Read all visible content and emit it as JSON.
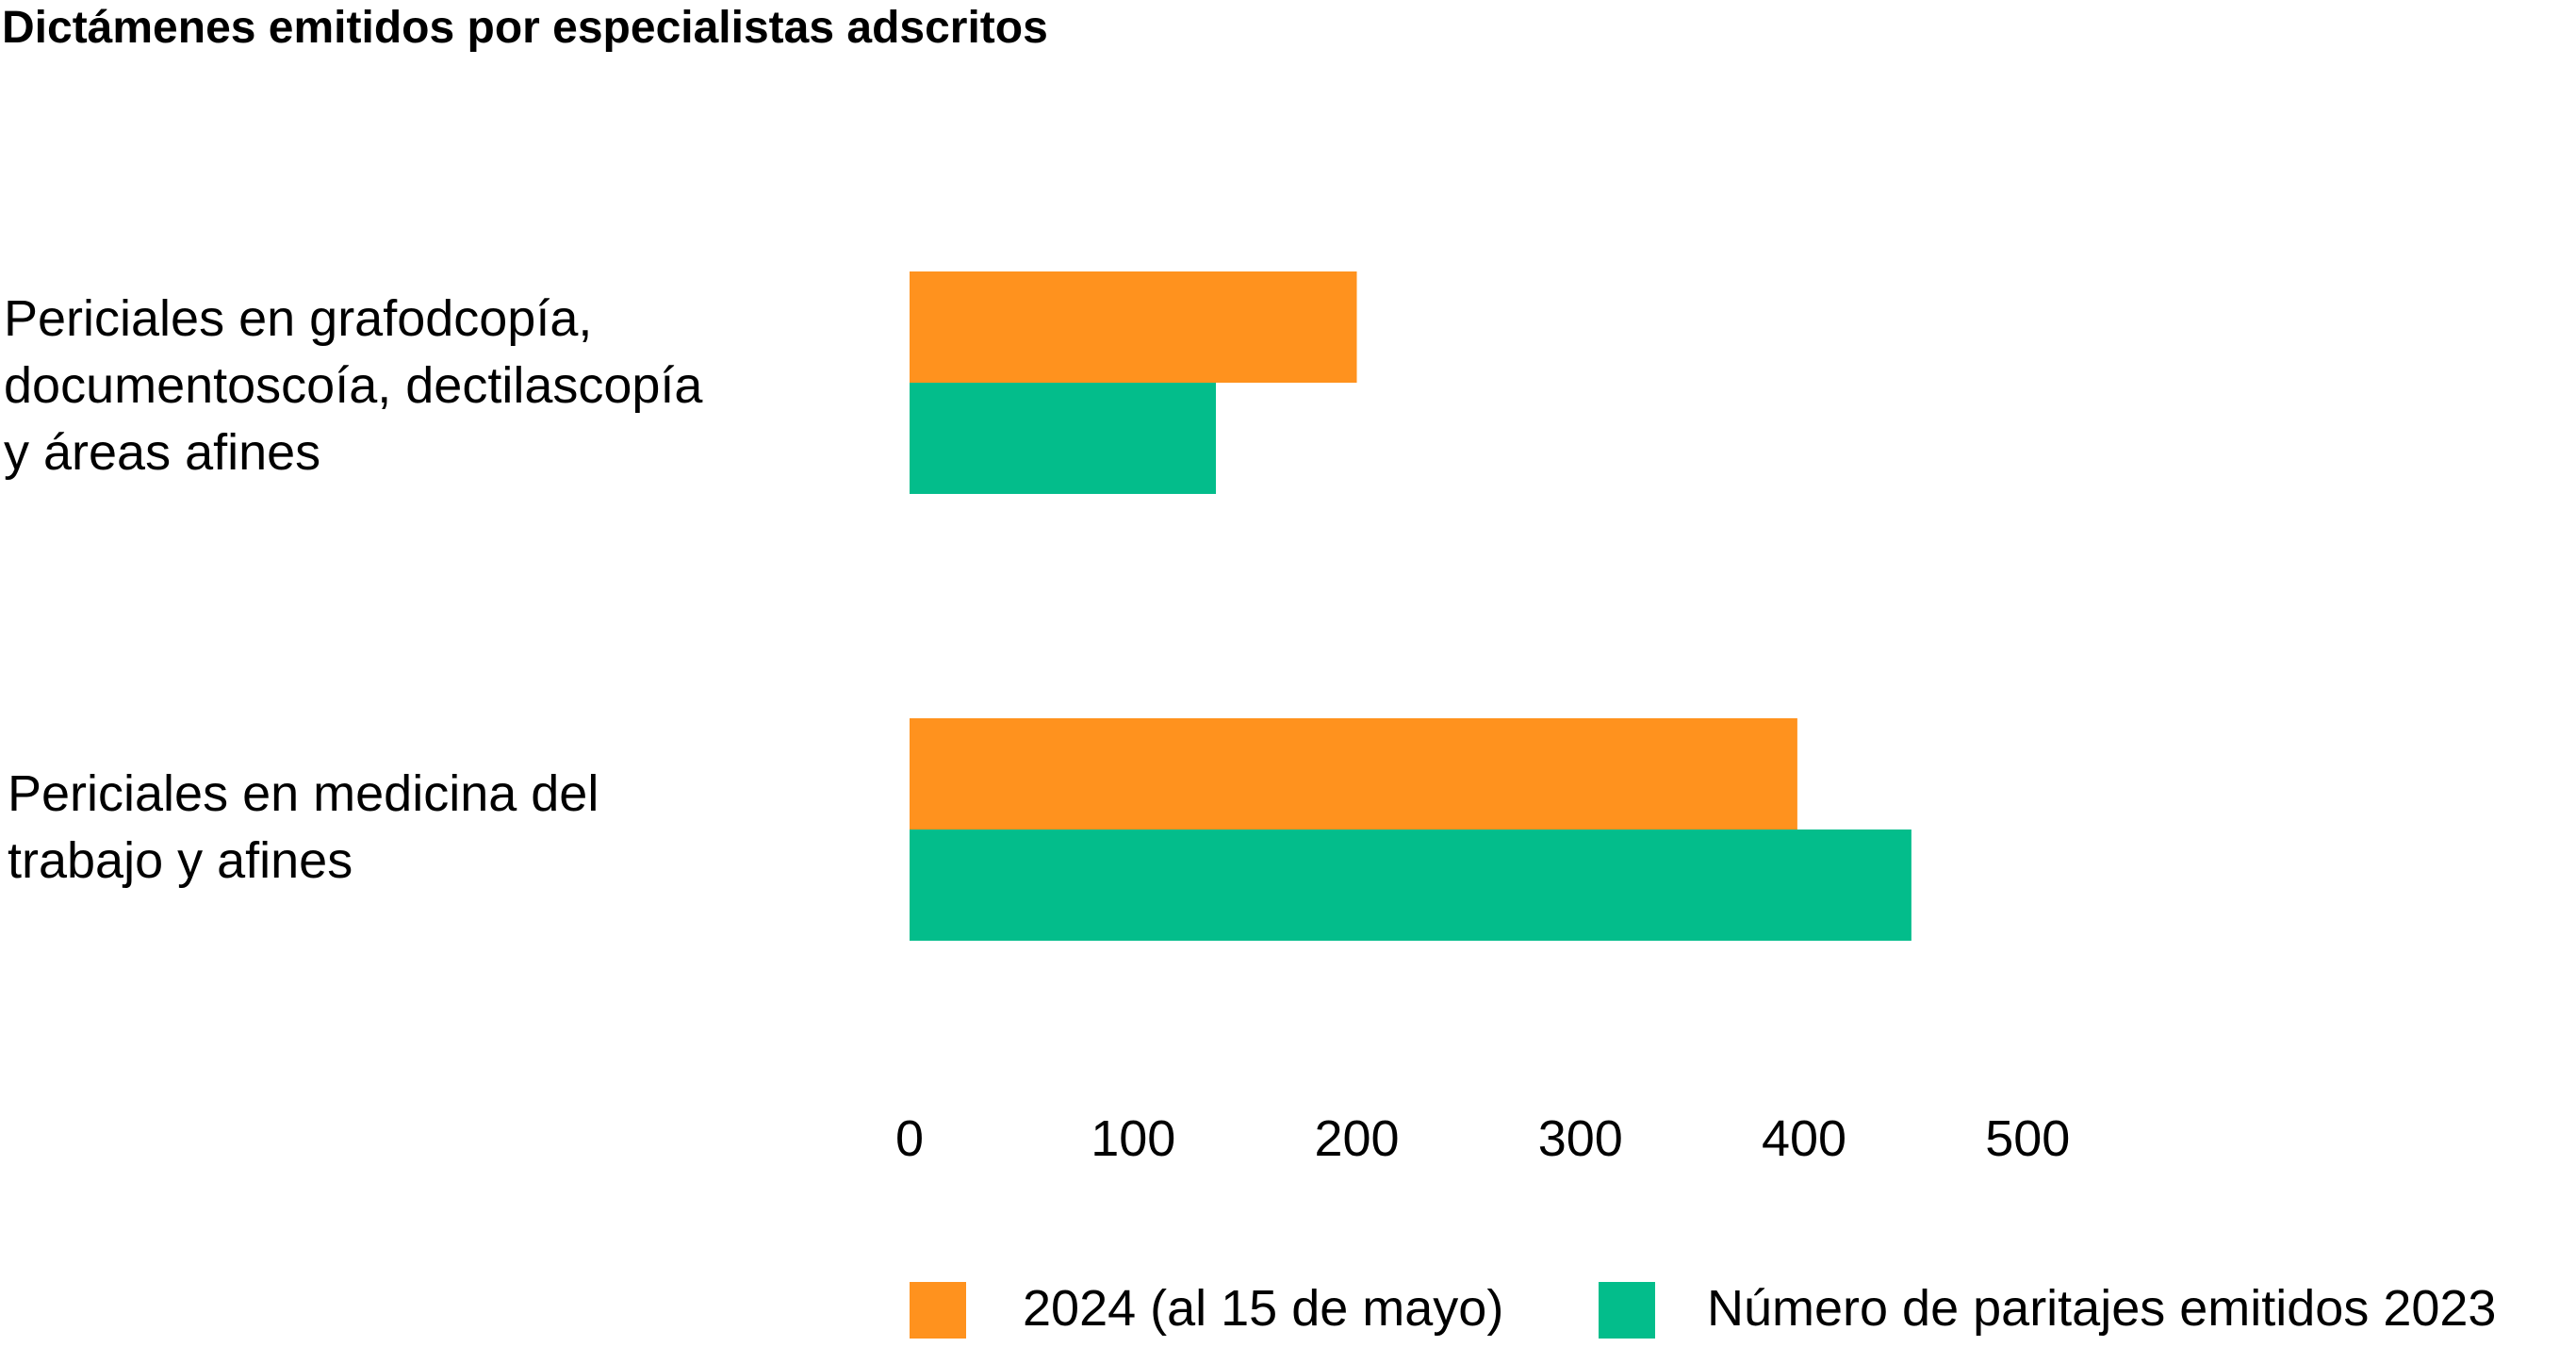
{
  "chart_data": {
    "type": "bar",
    "orientation": "horizontal",
    "title": "Dictámenes emitidos por especialistas adscritos",
    "categories": [
      [
        "Periciales en grafodcopía,",
        "documentoscoía, dectilascopía",
        "y áreas afines"
      ],
      [
        "Periciales en medicina del",
        "trabajo y afines"
      ]
    ],
    "series": [
      {
        "name": "2024 (al 15 de mayo)",
        "color": "#FF921E",
        "values": [
          200,
          397
        ]
      },
      {
        "name": "Número de paritajes emitidos 2023",
        "color": "#03BD8B",
        "values": [
          137,
          448
        ]
      }
    ],
    "xlim": [
      0,
      500
    ],
    "xticks": [
      "0",
      "100",
      "200",
      "300",
      "400",
      "500"
    ],
    "grid": false,
    "legend_position": "bottom"
  }
}
